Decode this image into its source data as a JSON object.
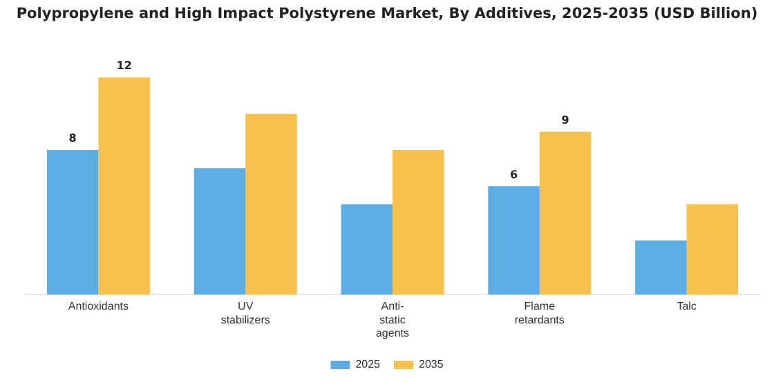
{
  "chart_data": {
    "type": "bar",
    "title": "Polypropylene and High Impact Polystyrene Market, By Additives, 2025-2035 (USD Billion)",
    "categories": [
      "Antioxidants",
      "UV stabilizers",
      "Anti-static agents",
      "Flame retardants",
      "Talc"
    ],
    "series": [
      {
        "name": "2025",
        "color": "#5dade2",
        "values": [
          8,
          7,
          5,
          6,
          3
        ],
        "value_labels": [
          "8",
          null,
          null,
          "6",
          null
        ]
      },
      {
        "name": "2035",
        "color": "#f7c14b",
        "values": [
          12,
          10,
          8,
          9,
          5
        ],
        "value_labels": [
          "12",
          null,
          null,
          "9",
          null
        ]
      }
    ],
    "tick_labels": "x",
    "grid": false,
    "legend": "bottom"
  }
}
